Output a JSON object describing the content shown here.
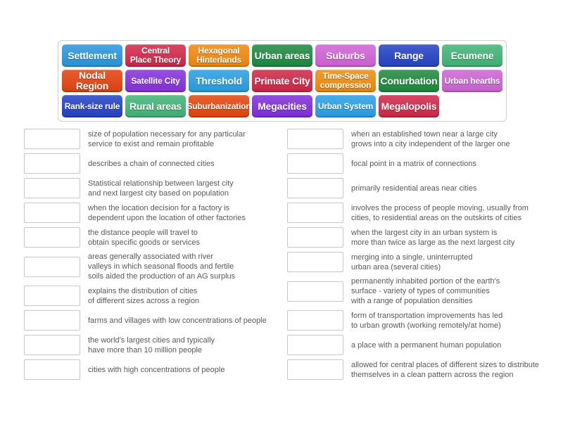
{
  "activity": {
    "type": "match-up",
    "word_bank": {
      "tiles": [
        {
          "label": "Settlement",
          "color": "#2B97DC",
          "small": false
        },
        {
          "label": "Central\nPlace Theory",
          "color": "#D2294B",
          "small": true
        },
        {
          "label": "Hexagonal\nHinterlands",
          "color": "#F18A0E",
          "small": true
        },
        {
          "label": "Urban areas",
          "color": "#1F8A42",
          "small": false
        },
        {
          "label": "Suburbs",
          "color": "#D263D8",
          "small": false
        },
        {
          "label": "Range",
          "color": "#2543C5",
          "small": false
        },
        {
          "label": "Ecumene",
          "color": "#43B478",
          "small": false
        },
        {
          "label": "Nodal Region",
          "color": "#E4430F",
          "small": false
        },
        {
          "label": "Satellite City",
          "color": "#8632DC",
          "small": true
        },
        {
          "label": "Threshold",
          "color": "#2B9FE3",
          "small": false
        },
        {
          "label": "Primate City",
          "color": "#CF2847",
          "small": false
        },
        {
          "label": "Time-Space\ncompression",
          "color": "#F08C0E",
          "small": true
        },
        {
          "label": "Conurbation",
          "color": "#1F8A40",
          "small": false
        },
        {
          "label": "Urban hearths",
          "color": "#CC66D4",
          "small": true
        },
        {
          "label": "Rank-size rule",
          "color": "#2543C5",
          "small": true
        },
        {
          "label": "Rural areas",
          "color": "#43B478",
          "small": false
        },
        {
          "label": "Suburbanization",
          "color": "#E4470D",
          "small": true
        },
        {
          "label": "Megacities",
          "color": "#8030DA",
          "small": false
        },
        {
          "label": "Urban System",
          "color": "#2BA0E6",
          "small": true
        },
        {
          "label": "Megalopolis",
          "color": "#D0294A",
          "small": false
        }
      ]
    },
    "definitions": {
      "left": [
        "size of population necessary for any particular\nservice to exist and remain profitable",
        "describes a chain of connected cities",
        "Statistical relationship between largest city\nand next largest city based on population",
        "when the location decision for a factory is\ndependent upon the location of other factories",
        "the distance people will travel to\nobtain specific goods or services",
        "areas generally associated with river\nvalleys in which seasonal floods and fertile\nsoils aided the production of an AG surplus",
        "explains the distribution of cities\nof different sizes across a region",
        "farms and villages with low concentrations of people",
        "the world's largest cities and typically\nhave more than 10 million people",
        "cities with high concentrations of people"
      ],
      "right": [
        "when an established town near a large city\ngrows into a city independent of the larger one",
        "focal point in a matrix of connections",
        "primarily residential areas near cities",
        "involves the process of people moving, usually from\ncities, to residential areas on the outskirts of cities",
        "when the largest city in an urban system is\nmore than twice as large as the next largest city",
        "merging into a single, uninterrupted\nurban area (several cities)",
        "permanently inhabited portion of the earth's\nsurface - variety of types of communities\nwith a range of population densities",
        "form of transportation improvements has led\nto urban growth (working remotely/at home)",
        "a place with a permanent human population",
        "allowed for central places of different sizes to distribute\nthemselves in a clean pattern across the region"
      ]
    },
    "slot_border_color": "#C6C6C6",
    "definition_text_color": "#58595B"
  }
}
